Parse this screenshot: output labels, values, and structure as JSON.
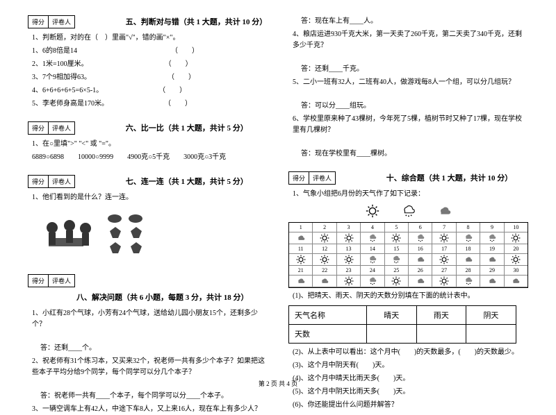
{
  "score_labels": {
    "score": "得分",
    "reviewer": "评卷人"
  },
  "sections": {
    "s5": {
      "title": "五、判断对与错（共 1 大题，共计 10 分）"
    },
    "s6": {
      "title": "六、比一比（共 1 大题，共计 5 分）"
    },
    "s7": {
      "title": "七、连一连（共 1 大题，共计 5 分）"
    },
    "s8": {
      "title": "八、解决问题（共 6 小题，每题 3 分，共计 18 分）"
    },
    "s10": {
      "title": "十、综合题（共 1 大题，共计 10 分）"
    }
  },
  "q5": {
    "stem": "1、判断题，对的在（　）里画\"√\"，错的画\"×\"。",
    "items": [
      "1、6的8倍是14　　　　　　　　　　　　　　（　　）",
      "2、1米=100厘米。　　　　　　　　　　　　（　　）",
      "3、7个9相加得63。　　　　　　　　　　　　（　　）",
      "4、6+6+6+6+5=6×5-1。　　　　　　　　　（　　）",
      "5、李老师身高是170米。　　　　　　　　　（　　）"
    ]
  },
  "q6": {
    "stem": "1、在○里填\">\" \"<\" 或 \"=\"。",
    "row": "6889○6898　　10000○9999　　4900克○5千克　　3000克○3千克"
  },
  "q7": {
    "stem": "1、他们看到的是什么？连一连。"
  },
  "q8": {
    "q1": "1、小红有28个气球，小芳有24个气球，送给幼儿园小朋友15个，还剩多少个？",
    "a1": "答：还剩____个。",
    "q2": "2、祝老师有31个练习本，又买来32个，祝老师一共有多少个本子？如果把这些本子平均分给9个同学，每个同学可以分几个本子？",
    "a2": "答：祝老师一共有____个本子，每个同学可以分____个本子。",
    "q3": "3、一辆空调车上有42人，中途下车8人，又上来16人，现在车上有多少人？"
  },
  "right": {
    "a3": "答：现在车上有____人。",
    "q4": "4、粮店运进930千克大米，第一天卖了260千克，第二天卖了340千克，还剩多少千克？",
    "a4": "答：还剩____千克。",
    "q5": "5、二小一班有32人，二班有40人，做游戏每8人一个组，可以分几组玩？",
    "a5": "答：可以分____组玩。",
    "q6": "6、学校里原来种了43棵树，今年死了5棵，植树节时又种了17棵，现在学校里有几棵树？",
    "a6": "答：现在学校里有____棵树。"
  },
  "q10": {
    "stem": "1、气象小组把6月份的天气作了如下记录：",
    "days": [
      [
        "1",
        "2",
        "3",
        "4",
        "5",
        "6",
        "7",
        "8",
        "9",
        "10"
      ],
      [
        "11",
        "12",
        "13",
        "14",
        "15",
        "16",
        "17",
        "18",
        "19",
        "20"
      ],
      [
        "21",
        "22",
        "23",
        "24",
        "25",
        "26",
        "27",
        "28",
        "29",
        "30"
      ]
    ],
    "weather": [
      [
        "c",
        "s",
        "s",
        "r",
        "s",
        "r",
        "s",
        "r",
        "r",
        "s"
      ],
      [
        "s",
        "s",
        "s",
        "r",
        "r",
        "c",
        "s",
        "c",
        "c",
        "s"
      ],
      [
        "c",
        "c",
        "s",
        "r",
        "s",
        "c",
        "s",
        "r",
        "c",
        "c"
      ]
    ],
    "inst1": "(1)、把晴天、雨天、阴天的天数分别填在下面的统计表中。",
    "table_headers": [
      "天气名称",
      "晴天",
      "雨天",
      "阴天"
    ],
    "table_row": "天数",
    "inst2": "(2)、从上表中可以看出：这个月中(　　)的天数最多，(　　)的天数最少。",
    "inst3": "(3)、这个月中阴天有(　　)天。",
    "inst4": "(4)、这个月中晴天比雨天多(　　)天。",
    "inst5": "(5)、这个月中阴天比雨天多(　　)天。",
    "inst6": "(6)、你还能提出什么问题并解答？"
  },
  "footer": "第 2 页 共 4 页"
}
